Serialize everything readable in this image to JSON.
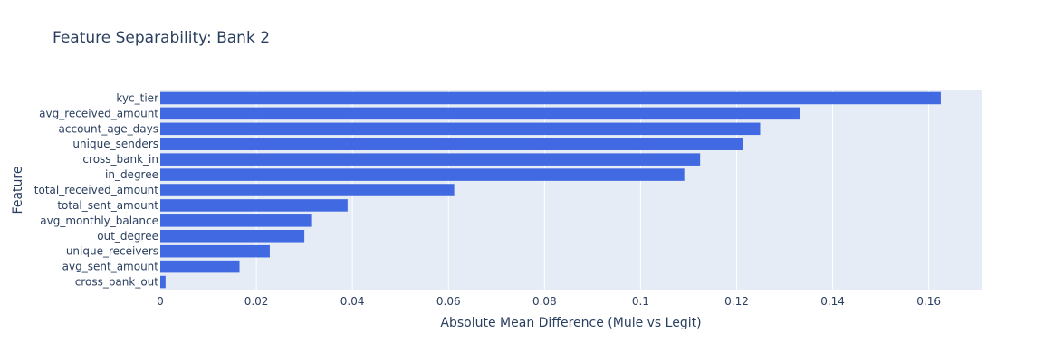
{
  "chart_data": {
    "type": "bar",
    "orientation": "horizontal",
    "title": "Feature Separability: Bank 2",
    "xlabel": "Absolute Mean Difference (Mule vs Legit)",
    "ylabel": "Feature",
    "xlim": [
      0,
      0.171
    ],
    "x_ticks": [
      0,
      0.02,
      0.04,
      0.06,
      0.08,
      0.1,
      0.12,
      0.14,
      0.16
    ],
    "x_tick_labels": [
      "0",
      "0.02",
      "0.04",
      "0.06",
      "0.08",
      "0.1",
      "0.12",
      "0.14",
      "0.16"
    ],
    "grid": true,
    "bar_color": "#4169e1",
    "plot_bg": "#e5ecf6",
    "categories": [
      "kyc_tier",
      "avg_received_amount",
      "account_age_days",
      "unique_senders",
      "cross_bank_in",
      "in_degree",
      "total_received_amount",
      "total_sent_amount",
      "avg_monthly_balance",
      "out_degree",
      "unique_receivers",
      "avg_sent_amount",
      "cross_bank_out"
    ],
    "values": [
      0.1625,
      0.1331,
      0.1249,
      0.1214,
      0.1124,
      0.1091,
      0.0612,
      0.039,
      0.0316,
      0.03,
      0.0228,
      0.0165,
      0.0011
    ]
  }
}
